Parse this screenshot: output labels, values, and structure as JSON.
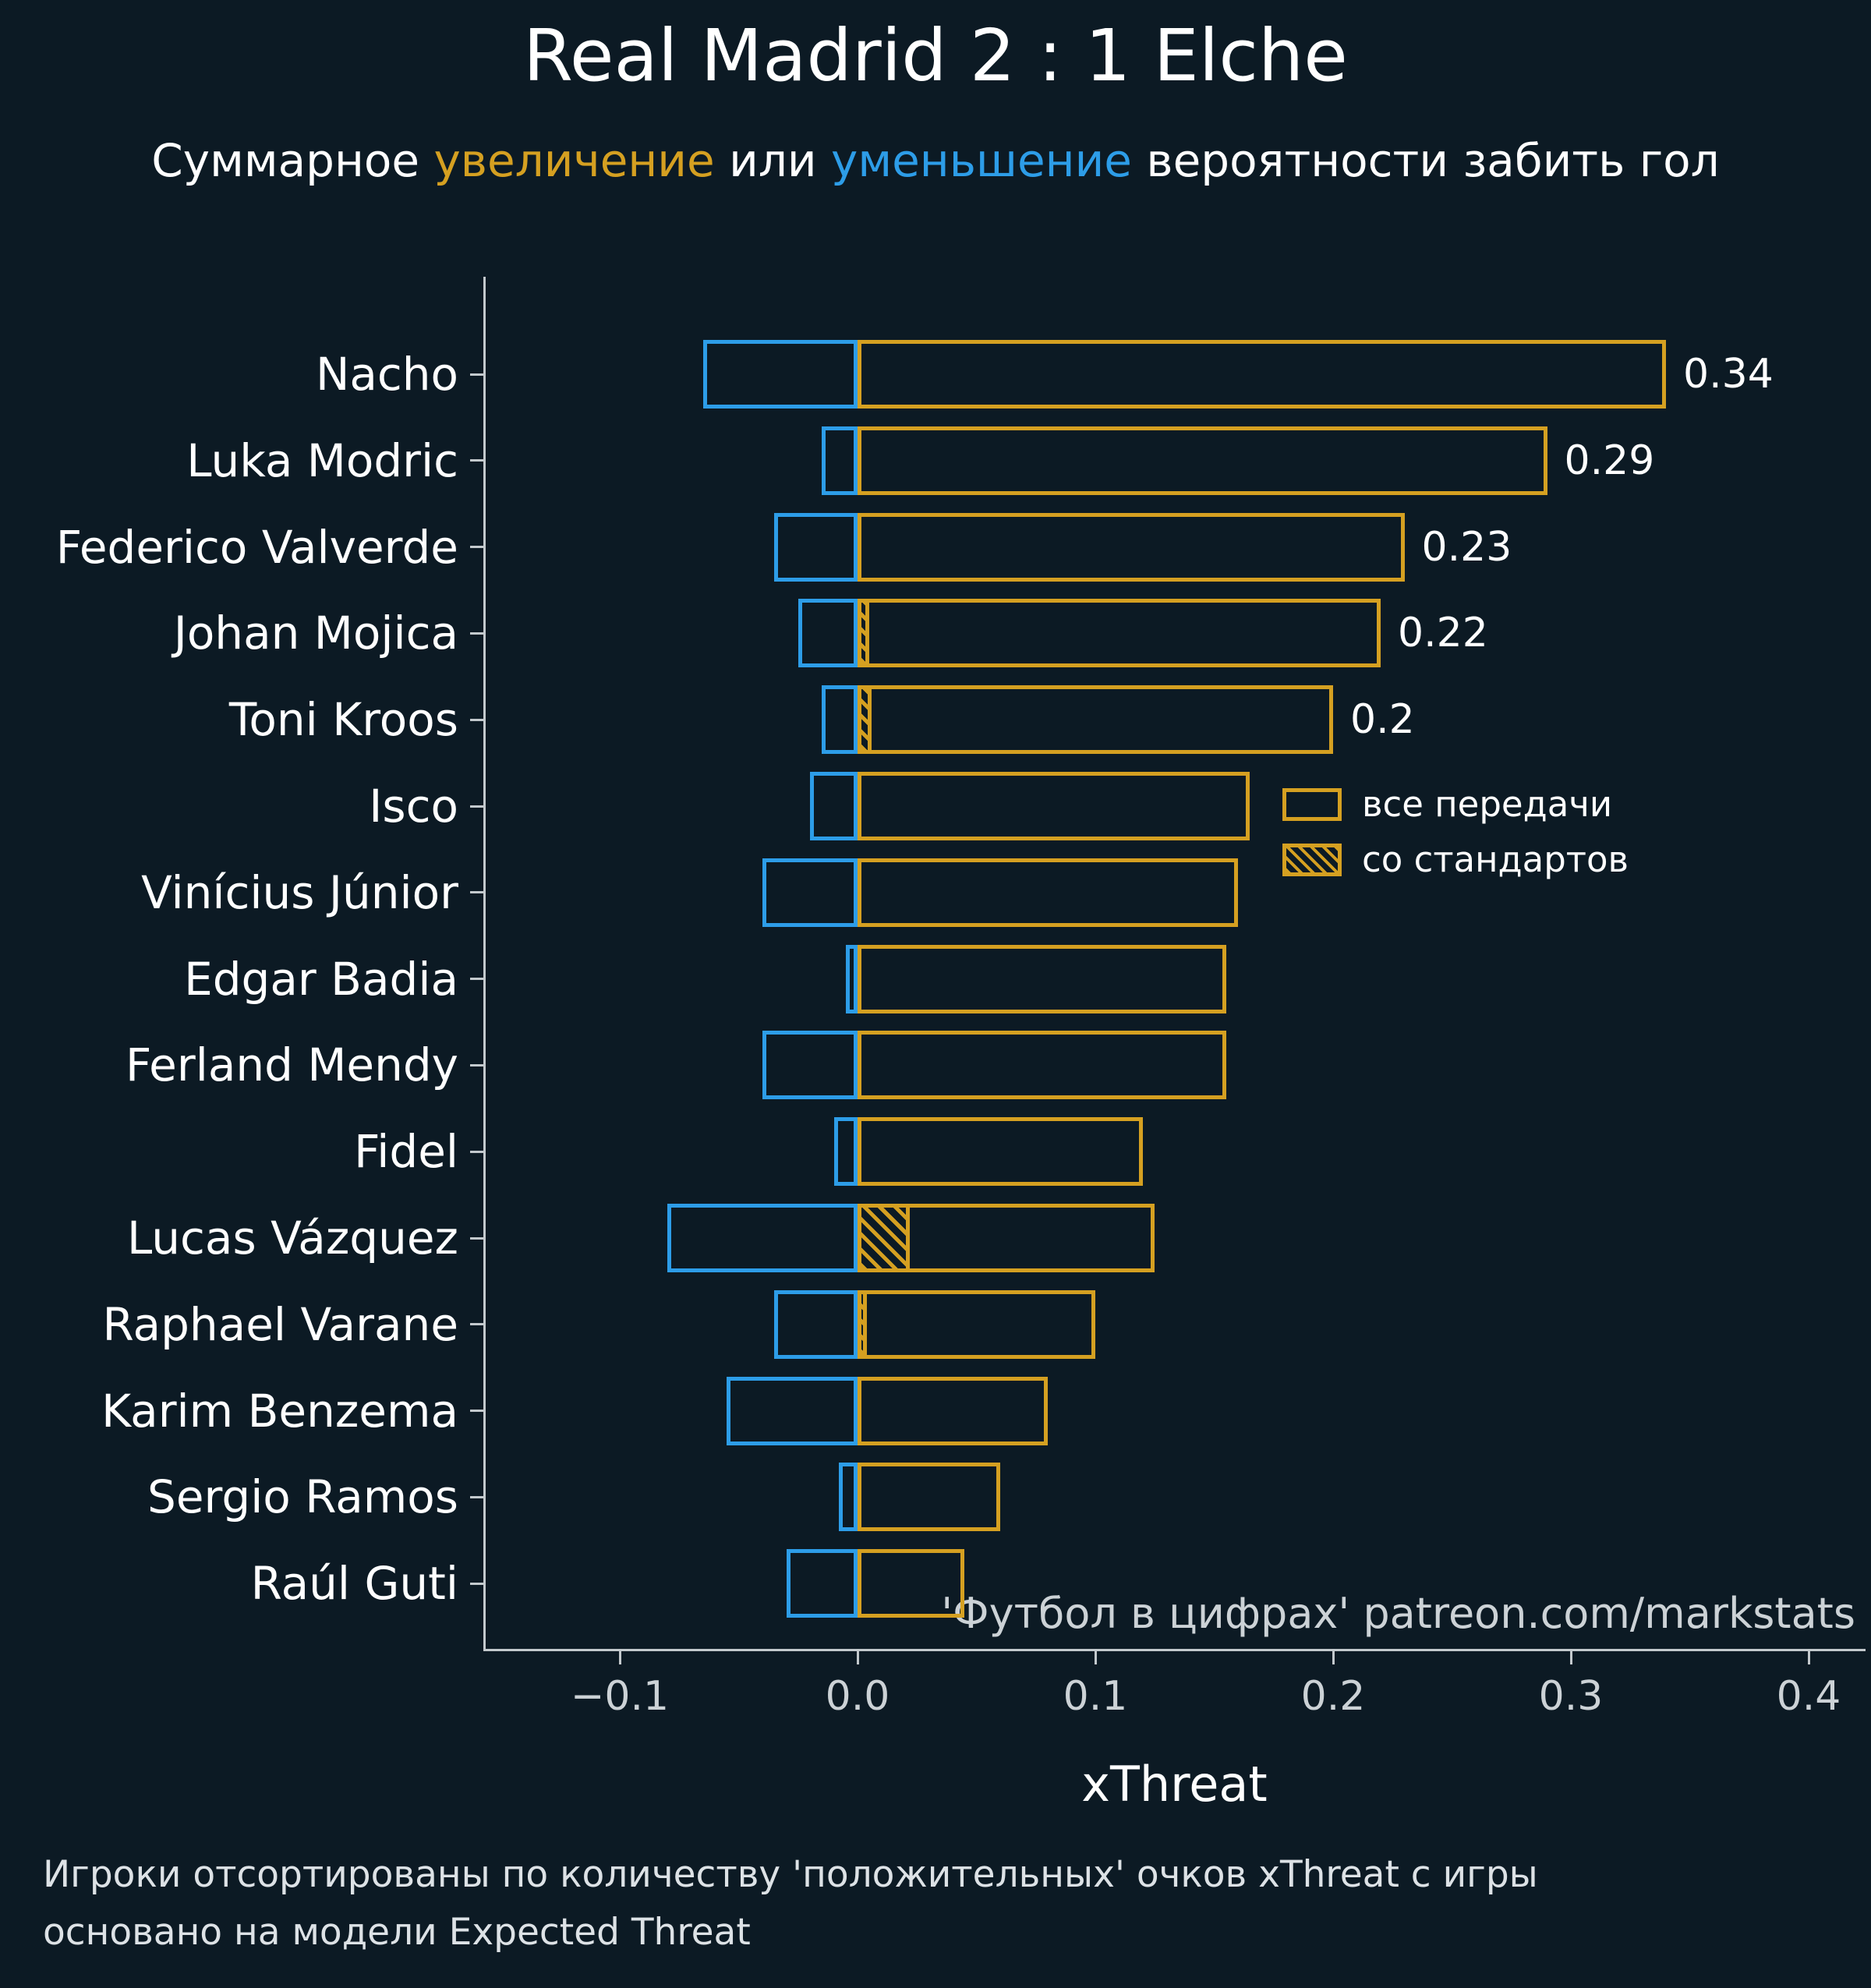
{
  "title": "Real Madrid 2 : 1 Elche",
  "subtitle": {
    "prefix": "Суммарное ",
    "increase": "увеличение",
    "middle": " или ",
    "decrease": "уменьшение",
    "suffix": " вероятности забить гол"
  },
  "legend": {
    "all_passes": "все передачи",
    "set_pieces": "со стандартов"
  },
  "watermark": "'Футбол в цифрах' patreon.com/markstats",
  "footer": {
    "line1": "Игроки отсортированы по количеству 'положительных' очков xThreat с игры",
    "line2": "основано на модели Expected Threat"
  },
  "colors": {
    "background": "#0c1a24",
    "yellow": "#d5a021",
    "blue": "#2d9de8",
    "text": "#ffffff",
    "muted": "#ccd2d6",
    "spine": "#c3c9cd"
  },
  "chart_data": {
    "type": "bar",
    "orientation": "horizontal",
    "title": "Real Madrid 2 : 1 Elche",
    "xlabel": "xThreat",
    "xlim": [
      -0.157,
      0.423
    ],
    "x_ticks": [
      -0.1,
      0.0,
      0.1,
      0.2,
      0.3,
      0.4
    ],
    "x_tick_labels": [
      "−0.1",
      "0.0",
      "0.1",
      "0.2",
      "0.3",
      "0.4"
    ],
    "grid": false,
    "legend_position": "middle-right",
    "series_meaning": {
      "positive": "суммарное увеличение вероятности забить гол (все передачи), жёлтый контур",
      "negative": "суммарное уменьшение вероятности забить гол, синий контур",
      "set_piece": "доля со стандартов, жёлтая штриховка"
    },
    "players": [
      {
        "name": "Nacho",
        "positive": 0.34,
        "negative": -0.065,
        "set_piece": 0,
        "label": "0.34"
      },
      {
        "name": "Luka Modric",
        "positive": 0.29,
        "negative": -0.015,
        "set_piece": 0,
        "label": "0.29"
      },
      {
        "name": "Federico Valverde",
        "positive": 0.23,
        "negative": -0.035,
        "set_piece": 0,
        "label": "0.23"
      },
      {
        "name": "Johan Mojica",
        "positive": 0.22,
        "negative": -0.025,
        "set_piece": 0.005,
        "label": "0.22"
      },
      {
        "name": "Toni Kroos",
        "positive": 0.2,
        "negative": -0.015,
        "set_piece": 0.006,
        "label": "0.2"
      },
      {
        "name": "Isco",
        "positive": 0.165,
        "negative": -0.02,
        "set_piece": 0,
        "label": ""
      },
      {
        "name": "Vinícius Júnior",
        "positive": 0.16,
        "negative": -0.04,
        "set_piece": 0,
        "label": ""
      },
      {
        "name": "Edgar Badia",
        "positive": 0.155,
        "negative": -0.005,
        "set_piece": 0,
        "label": ""
      },
      {
        "name": "Ferland Mendy",
        "positive": 0.155,
        "negative": -0.04,
        "set_piece": 0,
        "label": ""
      },
      {
        "name": "Fidel",
        "positive": 0.12,
        "negative": -0.01,
        "set_piece": 0,
        "label": ""
      },
      {
        "name": "Lucas Vázquez",
        "positive": 0.125,
        "negative": -0.08,
        "set_piece": 0.022,
        "label": ""
      },
      {
        "name": "Raphael Varane",
        "positive": 0.1,
        "negative": -0.035,
        "set_piece": 0.004,
        "label": ""
      },
      {
        "name": "Karim Benzema",
        "positive": 0.08,
        "negative": -0.055,
        "set_piece": 0,
        "label": ""
      },
      {
        "name": "Sergio Ramos",
        "positive": 0.06,
        "negative": -0.008,
        "set_piece": 0,
        "label": ""
      },
      {
        "name": "Raúl Guti",
        "positive": 0.045,
        "negative": -0.03,
        "set_piece": 0,
        "label": ""
      }
    ]
  }
}
